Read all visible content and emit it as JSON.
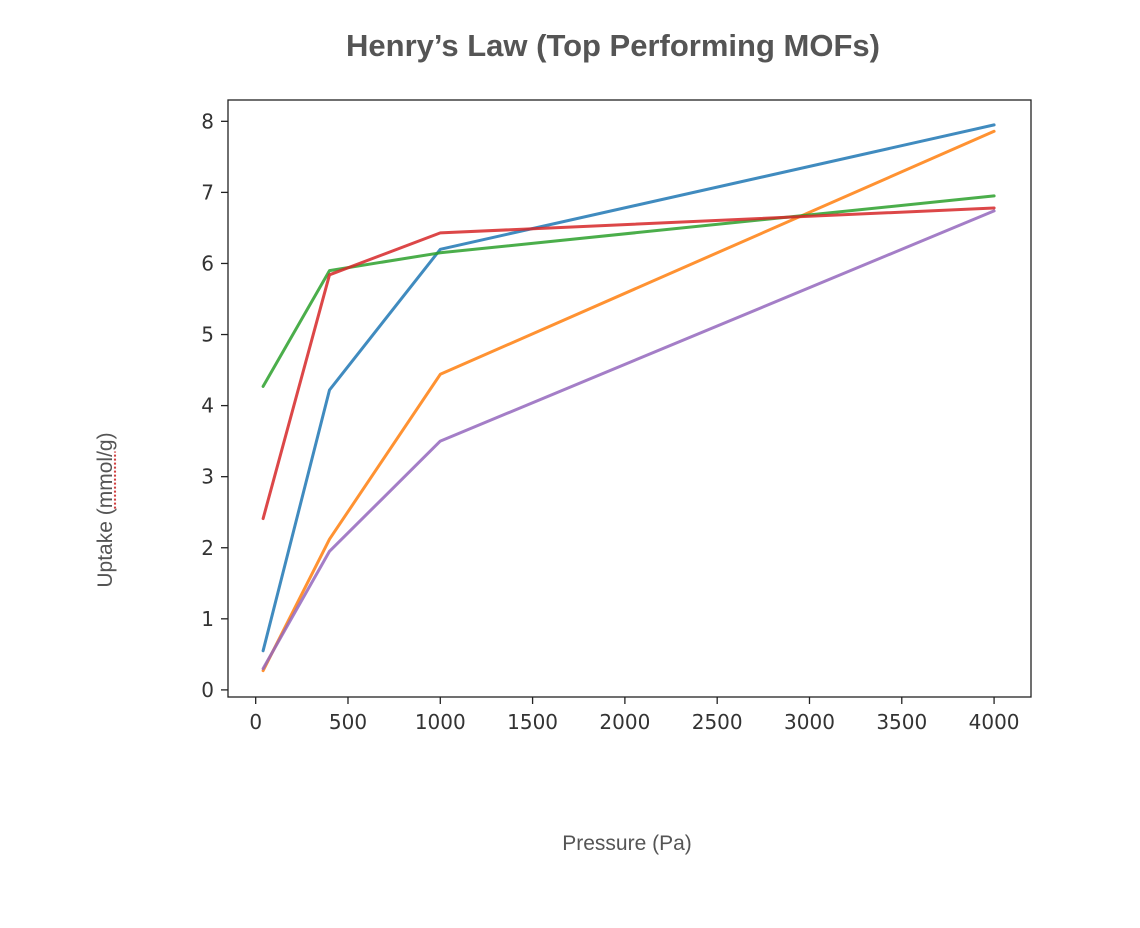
{
  "chart_data": {
    "type": "line",
    "title": "Henry’s Law (Top Performing MOFs)",
    "xlabel": "Pressure (Pa)",
    "ylabel_prefix": "Uptake (",
    "ylabel_unit": "mmol/g",
    "ylabel_suffix": ")",
    "xlim": [
      -150,
      4200
    ],
    "ylim": [
      -0.1,
      8.3
    ],
    "x_ticks": [
      0,
      500,
      1000,
      1500,
      2000,
      2500,
      3000,
      3500,
      4000
    ],
    "y_ticks": [
      0,
      1,
      2,
      3,
      4,
      5,
      6,
      7,
      8
    ],
    "grid": false,
    "x": [
      40,
      400,
      1000,
      4000
    ],
    "series": [
      {
        "color": "#1f77b4",
        "values": [
          0.55,
          4.22,
          6.2,
          7.95
        ]
      },
      {
        "color": "#ff7f0e",
        "values": [
          0.27,
          2.12,
          4.44,
          7.86
        ]
      },
      {
        "color": "#2ca02c",
        "values": [
          4.27,
          5.9,
          6.15,
          6.95
        ]
      },
      {
        "color": "#d62728",
        "values": [
          2.41,
          5.84,
          6.43,
          6.78
        ]
      },
      {
        "color": "#9467bd",
        "values": [
          0.3,
          1.95,
          3.5,
          6.74
        ]
      }
    ]
  }
}
